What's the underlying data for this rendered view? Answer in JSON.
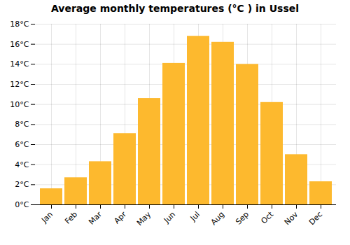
{
  "chart_data": {
    "type": "bar",
    "title": "Average monthly temperatures (°C ) in Ussel",
    "categories": [
      "Jan",
      "Feb",
      "Mar",
      "Apr",
      "May",
      "Jun",
      "Jul",
      "Aug",
      "Sep",
      "Oct",
      "Nov",
      "Dec"
    ],
    "values": [
      1.6,
      2.7,
      4.3,
      7.1,
      10.6,
      14.1,
      16.8,
      16.2,
      14.0,
      10.2,
      5.0,
      2.3
    ],
    "color": "#FDB92E",
    "ylim": [
      0,
      18
    ],
    "yticks": [
      {
        "value": 0,
        "label": "0°C"
      },
      {
        "value": 2,
        "label": "2°C"
      },
      {
        "value": 4,
        "label": "4°C"
      },
      {
        "value": 6,
        "label": "6°C"
      },
      {
        "value": 8,
        "label": "8°C"
      },
      {
        "value": 10,
        "label": "10°C"
      },
      {
        "value": 12,
        "label": "12°C"
      },
      {
        "value": 14,
        "label": "14°C"
      },
      {
        "value": 16,
        "label": "16°C"
      },
      {
        "value": 18,
        "label": "18°C"
      }
    ],
    "grid": true
  }
}
